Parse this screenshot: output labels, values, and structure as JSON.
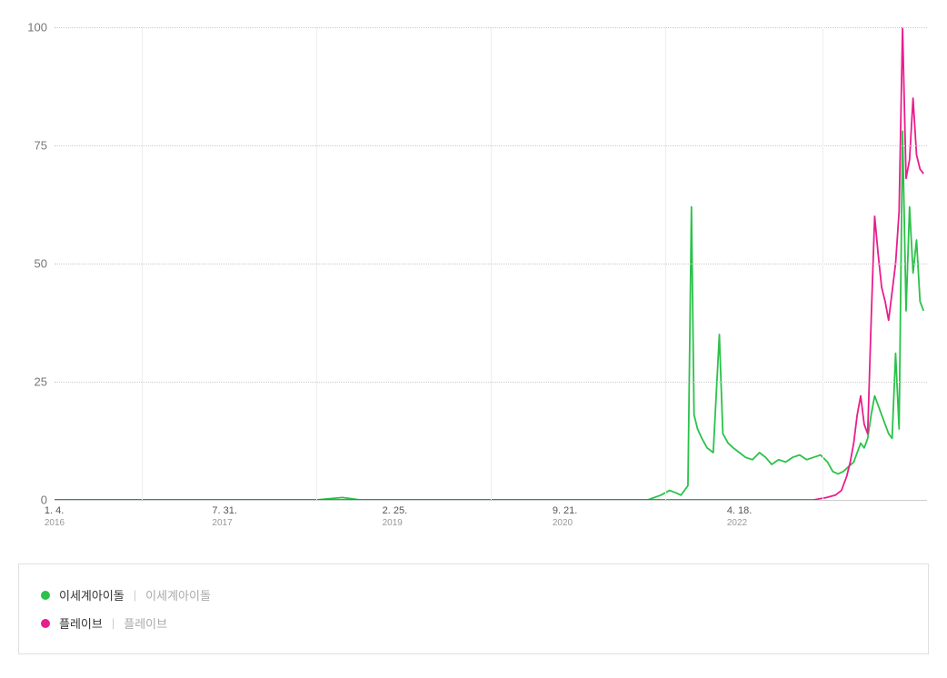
{
  "chart": {
    "type": "line",
    "background_color": "#ffffff",
    "grid_color": "#cccccc",
    "vgrid_color": "#eeeeee",
    "ylim": [
      0,
      100
    ],
    "yticks": [
      0,
      25,
      50,
      75,
      100
    ],
    "xticks": [
      {
        "pos": 0.0,
        "label": "1. 4.",
        "year": "2016"
      },
      {
        "pos": 0.195,
        "label": "7. 31.",
        "year": "2017"
      },
      {
        "pos": 0.39,
        "label": "2. 25.",
        "year": "2019"
      },
      {
        "pos": 0.585,
        "label": "9. 21.",
        "year": "2020"
      },
      {
        "pos": 0.785,
        "label": "4. 18.",
        "year": "2022"
      }
    ],
    "vgrid_positions": [
      0.1,
      0.3,
      0.5,
      0.7,
      0.88
    ],
    "series": [
      {
        "name": "이세계아이돌",
        "sub": "이세계아이돌",
        "color": "#2bc24a",
        "line_width": 1.8,
        "points": [
          [
            0.0,
            0
          ],
          [
            0.05,
            0
          ],
          [
            0.1,
            0
          ],
          [
            0.15,
            0
          ],
          [
            0.2,
            0
          ],
          [
            0.25,
            0
          ],
          [
            0.3,
            0
          ],
          [
            0.33,
            0.5
          ],
          [
            0.35,
            0
          ],
          [
            0.4,
            0
          ],
          [
            0.45,
            0
          ],
          [
            0.5,
            0
          ],
          [
            0.55,
            0
          ],
          [
            0.6,
            0
          ],
          [
            0.65,
            0
          ],
          [
            0.68,
            0
          ],
          [
            0.695,
            1
          ],
          [
            0.705,
            2
          ],
          [
            0.712,
            1.5
          ],
          [
            0.718,
            1
          ],
          [
            0.722,
            2
          ],
          [
            0.726,
            3
          ],
          [
            0.73,
            62
          ],
          [
            0.733,
            18
          ],
          [
            0.737,
            15
          ],
          [
            0.742,
            13
          ],
          [
            0.748,
            11
          ],
          [
            0.755,
            10
          ],
          [
            0.762,
            35
          ],
          [
            0.766,
            14
          ],
          [
            0.772,
            12
          ],
          [
            0.778,
            11
          ],
          [
            0.785,
            10
          ],
          [
            0.792,
            9
          ],
          [
            0.8,
            8.5
          ],
          [
            0.808,
            10
          ],
          [
            0.815,
            9
          ],
          [
            0.822,
            7.5
          ],
          [
            0.83,
            8.5
          ],
          [
            0.838,
            8
          ],
          [
            0.846,
            9
          ],
          [
            0.854,
            9.5
          ],
          [
            0.862,
            8.5
          ],
          [
            0.87,
            9
          ],
          [
            0.878,
            9.5
          ],
          [
            0.886,
            8
          ],
          [
            0.892,
            6
          ],
          [
            0.898,
            5.5
          ],
          [
            0.904,
            6
          ],
          [
            0.91,
            7
          ],
          [
            0.916,
            8
          ],
          [
            0.92,
            10
          ],
          [
            0.924,
            12
          ],
          [
            0.928,
            11
          ],
          [
            0.932,
            13
          ],
          [
            0.936,
            18
          ],
          [
            0.94,
            22
          ],
          [
            0.944,
            20
          ],
          [
            0.948,
            18
          ],
          [
            0.952,
            16
          ],
          [
            0.956,
            14
          ],
          [
            0.96,
            13
          ],
          [
            0.964,
            31
          ],
          [
            0.968,
            15
          ],
          [
            0.972,
            78
          ],
          [
            0.976,
            40
          ],
          [
            0.98,
            62
          ],
          [
            0.984,
            48
          ],
          [
            0.988,
            55
          ],
          [
            0.992,
            42
          ],
          [
            0.996,
            40
          ]
        ]
      },
      {
        "name": "플레이브",
        "sub": "플레이브",
        "color": "#e91e8c",
        "line_width": 1.8,
        "points": [
          [
            0.0,
            0
          ],
          [
            0.1,
            0
          ],
          [
            0.2,
            0
          ],
          [
            0.3,
            0
          ],
          [
            0.4,
            0
          ],
          [
            0.5,
            0
          ],
          [
            0.6,
            0
          ],
          [
            0.7,
            0
          ],
          [
            0.75,
            0
          ],
          [
            0.8,
            0
          ],
          [
            0.85,
            0
          ],
          [
            0.87,
            0
          ],
          [
            0.885,
            0.5
          ],
          [
            0.895,
            1
          ],
          [
            0.902,
            2
          ],
          [
            0.908,
            5
          ],
          [
            0.912,
            8
          ],
          [
            0.916,
            12
          ],
          [
            0.92,
            18
          ],
          [
            0.924,
            22
          ],
          [
            0.928,
            16
          ],
          [
            0.932,
            14
          ],
          [
            0.936,
            38
          ],
          [
            0.94,
            60
          ],
          [
            0.944,
            52
          ],
          [
            0.948,
            45
          ],
          [
            0.952,
            42
          ],
          [
            0.956,
            38
          ],
          [
            0.96,
            44
          ],
          [
            0.964,
            50
          ],
          [
            0.968,
            61
          ],
          [
            0.972,
            100
          ],
          [
            0.976,
            68
          ],
          [
            0.98,
            72
          ],
          [
            0.984,
            85
          ],
          [
            0.988,
            73
          ],
          [
            0.992,
            70
          ],
          [
            0.996,
            69
          ]
        ]
      }
    ]
  },
  "legend": {
    "items": [
      {
        "color": "#2bc24a",
        "name": "이세계아이돌",
        "sub": "이세계아이돌"
      },
      {
        "color": "#e91e8c",
        "name": "플레이브",
        "sub": "플레이브"
      }
    ]
  }
}
